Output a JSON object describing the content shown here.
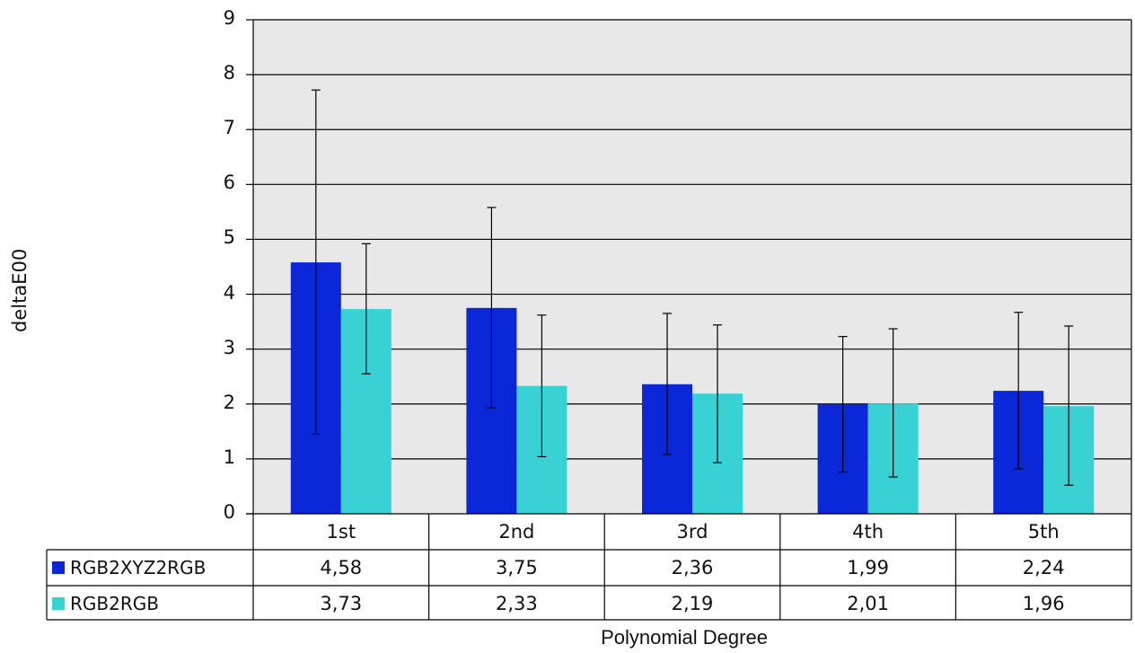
{
  "chart_data": {
    "type": "bar",
    "title": "",
    "xlabel": "Polynomial Degree",
    "ylabel": "deltaE00",
    "ylim": [
      0,
      9
    ],
    "yticks": [
      "0",
      "1",
      "2",
      "3",
      "4",
      "5",
      "6",
      "7",
      "8",
      "9"
    ],
    "grid": true,
    "categories": [
      "1st",
      "2nd",
      "3rd",
      "4th",
      "5th"
    ],
    "series": [
      {
        "name": "RGB2XYZ2RGB",
        "color": "#0a28d8",
        "values": [
          4.58,
          3.75,
          2.36,
          1.99,
          2.24
        ],
        "labels": [
          "4,58",
          "3,75",
          "2,36",
          "1,99",
          "2,24"
        ],
        "error_low": [
          1.45,
          1.93,
          1.08,
          0.76,
          0.82
        ],
        "error_high": [
          7.72,
          5.58,
          3.65,
          3.23,
          3.67
        ]
      },
      {
        "name": "RGB2RGB",
        "color": "#38d2d4",
        "values": [
          3.73,
          2.33,
          2.19,
          2.01,
          1.96
        ],
        "labels": [
          "3,73",
          "2,33",
          "2,19",
          "2,01",
          "1,96"
        ],
        "error_low": [
          2.55,
          1.04,
          0.93,
          0.67,
          0.52
        ],
        "error_high": [
          4.92,
          3.62,
          3.44,
          3.37,
          3.42
        ]
      }
    ]
  }
}
